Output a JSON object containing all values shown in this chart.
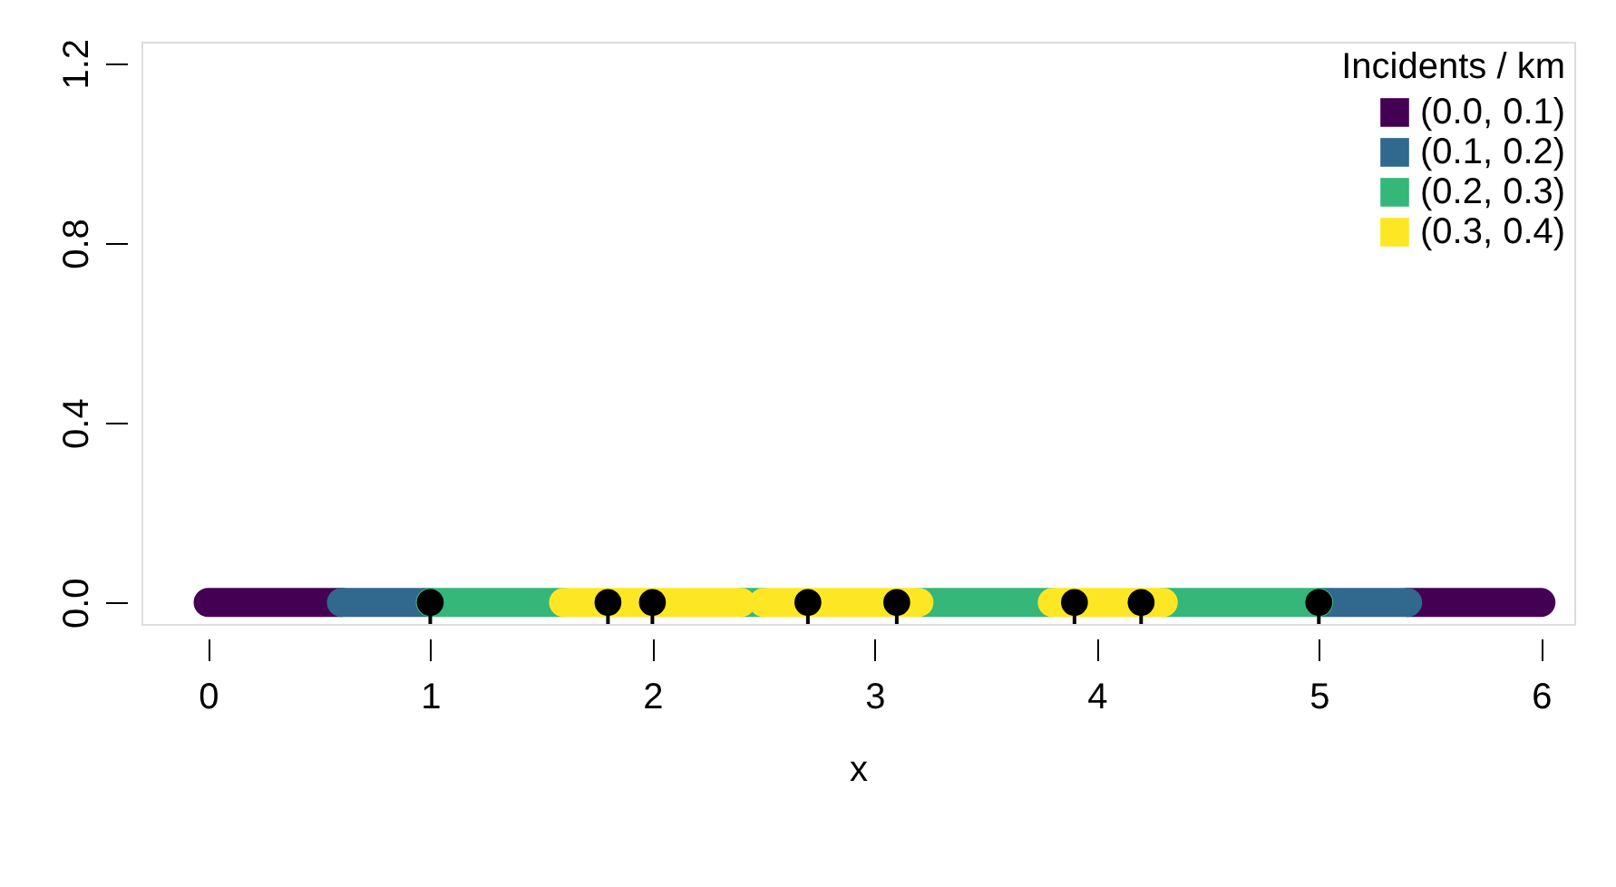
{
  "chart_data": {
    "type": "line",
    "xlabel": "x",
    "legend_title": "Incidents / km",
    "legend": "top right",
    "grid": false,
    "xlim": [
      -0.3,
      6.15
    ],
    "xticks": [
      0,
      1,
      2,
      3,
      4,
      5,
      6
    ],
    "ylim": [
      -0.048,
      1.248
    ],
    "yticks": [
      {
        "value": 0,
        "label": "0.0"
      },
      0.4,
      0.8,
      1.2
    ],
    "series": [
      {
        "name": "(0.0, 0.1)",
        "color": "#440154",
        "line_style": "solid",
        "x": [
          0,
          0.6,
          3,
          5.4,
          6.0
        ],
        "values": [
          0,
          0,
          null,
          0,
          0
        ]
      },
      {
        "name": "(0.1, 0.2)",
        "color": "#31688e",
        "line_style": "solid",
        "x": [
          0.6,
          1.0,
          3,
          5.0,
          5.4
        ],
        "values": [
          0,
          0,
          null,
          0,
          0
        ]
      },
      {
        "name": "(0.2, 0.3)",
        "color": "#35b779",
        "line_style": "solid",
        "x": [
          1.0,
          1.6,
          2.0,
          2.4,
          2.5,
          2.9,
          3.2,
          3.8,
          4.0,
          4.3,
          5.0
        ],
        "values": [
          0,
          0,
          null,
          0,
          0,
          null,
          0,
          0,
          null,
          0,
          0
        ]
      },
      {
        "name": "(0.3, 0.4)",
        "color": "#fde725",
        "line_style": "solid",
        "x": [
          1.6,
          2.4,
          2.45,
          2.5,
          3.2,
          3.5,
          3.8,
          4.3
        ],
        "values": [
          0,
          0,
          null,
          0,
          0,
          null,
          0,
          0
        ]
      },
      {
        "color": "#000000",
        "type": "scatter",
        "marker": "circle",
        "x": [
          1.0,
          1.8,
          2.0,
          2.7,
          3.1,
          3.9,
          4.2,
          5.0
        ],
        "values": [
          0,
          0,
          0,
          0,
          0,
          0,
          0,
          0
        ]
      }
    ]
  }
}
